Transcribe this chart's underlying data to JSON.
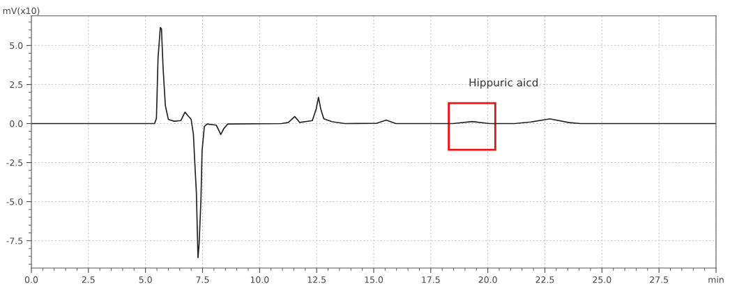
{
  "chart_data": {
    "type": "line",
    "ylabel": "mV(x10)",
    "x": [
      0,
      5.4,
      5.48,
      5.55,
      5.65,
      5.7,
      5.77,
      5.87,
      6.0,
      6.25,
      6.55,
      6.73,
      6.85,
      7.0,
      7.1,
      7.17,
      7.23,
      7.3,
      7.35,
      7.43,
      7.48,
      7.58,
      7.7,
      8.1,
      8.3,
      8.43,
      8.6,
      10.96,
      11.26,
      11.54,
      11.76,
      12.31,
      12.48,
      12.58,
      12.68,
      12.81,
      13.16,
      13.74,
      15.11,
      15.55,
      15.97,
      18.47,
      19.32,
      20.07,
      21.17,
      21.87,
      22.72,
      23.57,
      24.07,
      30
    ],
    "series": [
      {
        "color": "#222222",
        "values": [
          0,
          0,
          0.34,
          4.2,
          6.15,
          6.07,
          3.6,
          1.16,
          0.27,
          0.15,
          0.19,
          0.73,
          0.52,
          0.27,
          -0.7,
          -2.78,
          -4.42,
          -8.59,
          -7.7,
          -4.87,
          -1.74,
          -0.18,
          -0.03,
          -0.1,
          -0.7,
          -0.33,
          -0.03,
          0,
          0.07,
          0.45,
          0.07,
          0.19,
          0.94,
          1.68,
          0.94,
          0.31,
          0.12,
          0,
          0.01,
          0.22,
          0,
          0,
          0.13,
          0,
          0,
          0.1,
          0.3,
          0.06,
          0,
          0
        ]
      }
    ],
    "xlim": [
      0,
      30
    ],
    "ylim": [
      -9.25,
      6.9
    ],
    "xticks": [
      {
        "value": 0,
        "label": "0.0"
      },
      2.5,
      {
        "value": 5,
        "label": "5.0"
      },
      7.5,
      {
        "value": 10,
        "label": "10.0"
      },
      12.5,
      {
        "value": 15,
        "label": "15.0"
      },
      17.5,
      {
        "value": 20,
        "label": "20.0"
      },
      22.5,
      {
        "value": 25,
        "label": "25.0"
      },
      27.5,
      {
        "value": 30,
        "label": "min"
      },
      {
        "value": 0.5,
        "label": null
      },
      {
        "value": 1,
        "label": null
      },
      {
        "value": 1.5,
        "label": null
      },
      {
        "value": 2,
        "label": null
      },
      {
        "value": 3,
        "label": null
      },
      {
        "value": 3.5,
        "label": null
      },
      {
        "value": 4,
        "label": null
      },
      {
        "value": 4.5,
        "label": null
      },
      {
        "value": 5.5,
        "label": null
      },
      {
        "value": 6,
        "label": null
      },
      {
        "value": 6.5,
        "label": null
      },
      {
        "value": 7,
        "label": null
      },
      {
        "value": 8,
        "label": null
      },
      {
        "value": 8.5,
        "label": null
      },
      {
        "value": 9,
        "label": null
      },
      {
        "value": 9.5,
        "label": null
      },
      {
        "value": 10.5,
        "label": null
      },
      {
        "value": 11,
        "label": null
      },
      {
        "value": 11.5,
        "label": null
      },
      {
        "value": 12,
        "label": null
      },
      {
        "value": 13,
        "label": null
      },
      {
        "value": 13.5,
        "label": null
      },
      {
        "value": 14,
        "label": null
      },
      {
        "value": 14.5,
        "label": null
      },
      {
        "value": 15.5,
        "label": null
      },
      {
        "value": 16,
        "label": null
      },
      {
        "value": 16.5,
        "label": null
      },
      {
        "value": 17,
        "label": null
      },
      {
        "value": 18,
        "label": null
      },
      {
        "value": 18.5,
        "label": null
      },
      {
        "value": 19,
        "label": null
      },
      {
        "value": 19.5,
        "label": null
      },
      {
        "value": 20.5,
        "label": null
      },
      {
        "value": 21,
        "label": null
      },
      {
        "value": 21.5,
        "label": null
      },
      {
        "value": 22,
        "label": null
      },
      {
        "value": 23,
        "label": null
      },
      {
        "value": 23.5,
        "label": null
      },
      {
        "value": 24,
        "label": null
      },
      {
        "value": 24.5,
        "label": null
      },
      {
        "value": 25.5,
        "label": null
      },
      {
        "value": 26,
        "label": null
      },
      {
        "value": 26.5,
        "label": null
      },
      {
        "value": 27,
        "label": null
      },
      {
        "value": 28,
        "label": null
      },
      {
        "value": 28.5,
        "label": null
      },
      {
        "value": 29,
        "label": null
      },
      {
        "value": 29.5,
        "label": null
      }
    ],
    "yticks": [
      -7.5,
      {
        "value": -5,
        "label": "-5.0"
      },
      -2.5,
      {
        "value": 0,
        "label": "0.0"
      },
      2.5,
      {
        "value": 5,
        "label": "5.0"
      },
      {
        "value": -9,
        "label": null
      },
      {
        "value": -8.5,
        "label": null
      },
      {
        "value": -8,
        "label": null
      },
      {
        "value": -7,
        "label": null
      },
      {
        "value": -6.5,
        "label": null
      },
      {
        "value": -6,
        "label": null
      },
      {
        "value": -5.5,
        "label": null
      },
      {
        "value": -4.5,
        "label": null
      },
      {
        "value": -4,
        "label": null
      },
      {
        "value": -3.5,
        "label": null
      },
      {
        "value": -3,
        "label": null
      },
      {
        "value": -2,
        "label": null
      },
      {
        "value": -1.5,
        "label": null
      },
      {
        "value": -1,
        "label": null
      },
      {
        "value": -0.5,
        "label": null
      },
      {
        "value": 0.5,
        "label": null
      },
      {
        "value": 1,
        "label": null
      },
      {
        "value": 1.5,
        "label": null
      },
      {
        "value": 2,
        "label": null
      },
      {
        "value": 3,
        "label": null
      },
      {
        "value": 3.5,
        "label": null
      },
      {
        "value": 4,
        "label": null
      },
      {
        "value": 4.5,
        "label": null
      },
      {
        "value": 5.5,
        "label": null
      },
      {
        "value": 6,
        "label": null
      },
      {
        "value": 6.5,
        "label": null
      }
    ],
    "grid": true,
    "marker": "none",
    "line_style": "solid",
    "annotations": [
      "Hippuric aicd"
    ]
  }
}
